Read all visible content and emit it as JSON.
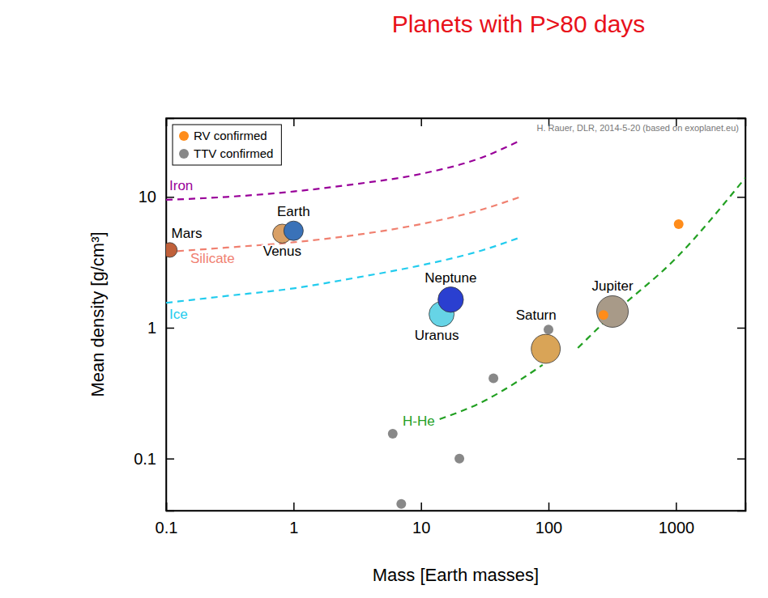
{
  "chart_data": {
    "type": "scatter",
    "title": "Planets with P>80 days",
    "subtitle": "H. Rauer, DLR, 2014-5-20 (based on exoplanet.eu)",
    "x_label": "Mass [Earth masses]",
    "y_label": "Mean density [g/cm³]",
    "log": true,
    "grid": false,
    "legend": "upper left",
    "xlim": [
      0.1,
      3500
    ],
    "ylim": [
      0.04,
      40
    ],
    "xticks": [
      0.1,
      1,
      10,
      100,
      1000
    ],
    "yticks": [
      0.1,
      1,
      10
    ],
    "series": [
      {
        "name": "Iron",
        "type": "line",
        "line_style": "dashed",
        "color": "#990099",
        "x": [
          0.1,
          0.3,
          1,
          3,
          10,
          30,
          60
        ],
        "values": [
          9.5,
          10,
          11,
          12.5,
          15,
          20,
          27
        ]
      },
      {
        "name": "Silicate",
        "type": "line",
        "line_style": "dashed",
        "color": "#f08070",
        "x": [
          0.1,
          0.3,
          1,
          3,
          10,
          30,
          60
        ],
        "values": [
          3.8,
          4.1,
          4.5,
          5.1,
          6.2,
          8,
          10
        ]
      },
      {
        "name": "Ice",
        "type": "line",
        "line_style": "dashed",
        "color": "#22ccee",
        "x": [
          0.1,
          0.3,
          1,
          3,
          10,
          30,
          60
        ],
        "values": [
          1.55,
          1.75,
          2,
          2.4,
          3,
          3.9,
          4.9
        ]
      },
      {
        "name": "H-He",
        "type": "line",
        "line_style": "dashed",
        "color": "#22a022",
        "x": [
          14,
          30,
          60,
          90,
          120,
          170,
          300,
          1000,
          3500
        ],
        "values": [
          0.2,
          0.27,
          0.4,
          0.52,
          null,
          0.7,
          1.2,
          3.4,
          14
        ]
      },
      {
        "type": "scatter",
        "marker": "planet",
        "labels": [
          "Mars",
          "Venus",
          "Earth",
          "Uranus",
          "Neptune",
          "Saturn",
          "Jupiter"
        ],
        "colors": [
          "#c0603a",
          "#d9a066",
          "#3a72b8",
          "#66d4e6",
          "#2a3fd0",
          "#d9a457",
          "#a89a88"
        ],
        "x": [
          0.107,
          0.815,
          1,
          14.5,
          17.1,
          95.2,
          317.8
        ],
        "values": [
          3.93,
          5.24,
          5.51,
          1.27,
          1.64,
          0.69,
          1.33
        ]
      },
      {
        "name": "RV confirmed",
        "type": "scatter",
        "marker": "circle",
        "color": "#ff8c1a",
        "x": [
          270,
          1050
        ],
        "values": [
          1.25,
          6.2
        ]
      },
      {
        "name": "TTV confirmed",
        "type": "scatter",
        "marker": "circle",
        "color": "#888888",
        "x": [
          6,
          7,
          20,
          37,
          100
        ],
        "values": [
          0.155,
          0.045,
          0.1,
          0.41,
          0.97
        ]
      }
    ]
  }
}
